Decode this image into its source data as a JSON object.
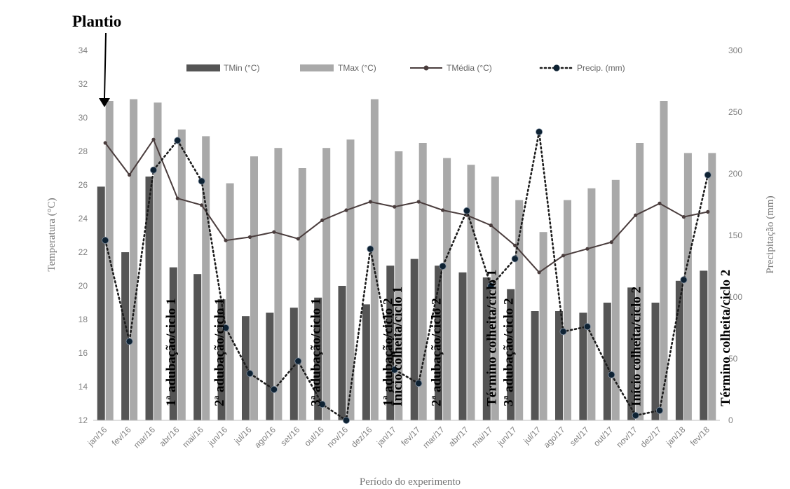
{
  "chart_data": {
    "type": "bar",
    "xlabel": "Período do experimento",
    "ylabel": "Temperatura (°C)",
    "y2label": "Precipitação (mm)",
    "ylim": [
      12,
      34
    ],
    "y_ticks": [
      12,
      14,
      16,
      18,
      20,
      22,
      24,
      26,
      28,
      30,
      32,
      34
    ],
    "y2lim": [
      0,
      300
    ],
    "y2_ticks": [
      0,
      50,
      100,
      150,
      200,
      250,
      300
    ],
    "grid": false,
    "legend_position": "top",
    "categories": [
      "jan/16",
      "fev/16",
      "mar/16",
      "abr/16",
      "mai/16",
      "jun/16",
      "jul/16",
      "ago/16",
      "set/16",
      "out/16",
      "nov/16",
      "dez/16",
      "jan/17",
      "fev/17",
      "mar/17",
      "abr/17",
      "mai/17",
      "jun/17",
      "jul/17",
      "ago/17",
      "set/17",
      "out/17",
      "nov/17",
      "dez/17",
      "jan/18",
      "fev/18"
    ],
    "series": [
      {
        "name": "TMin (°C)",
        "type": "bar",
        "axis": "left",
        "color": "#555555",
        "values": [
          25.9,
          22.0,
          26.5,
          21.1,
          20.7,
          19.2,
          18.2,
          18.4,
          18.7,
          19.3,
          20.0,
          18.9,
          21.2,
          21.6,
          21.2,
          20.8,
          20.5,
          19.8,
          18.5,
          18.5,
          18.4,
          19.0,
          19.9,
          19.0,
          20.3,
          20.9
        ]
      },
      {
        "name": "TMax (°C)",
        "type": "bar",
        "axis": "left",
        "color": "#a9a9a9",
        "values": [
          31.0,
          31.1,
          30.9,
          29.3,
          28.9,
          26.1,
          27.7,
          28.2,
          27.0,
          28.2,
          28.7,
          31.1,
          28.0,
          28.5,
          27.6,
          27.2,
          26.5,
          25.1,
          23.2,
          25.1,
          25.8,
          26.3,
          28.5,
          31.0,
          27.9,
          27.9
        ]
      },
      {
        "name": "TMédia (°C)",
        "type": "line",
        "axis": "left",
        "color": "#4a3d3d",
        "values": [
          28.5,
          26.6,
          28.7,
          25.2,
          24.8,
          22.7,
          22.9,
          23.2,
          22.8,
          23.9,
          24.5,
          25.0,
          24.7,
          25.0,
          24.5,
          24.2,
          23.6,
          22.4,
          20.8,
          21.8,
          22.2,
          22.6,
          24.2,
          24.9,
          24.1,
          24.4
        ]
      },
      {
        "name": "Precip. (mm)",
        "type": "line",
        "axis": "right",
        "color": "#1c1c1c",
        "values": [
          146,
          64,
          203,
          227,
          194,
          75,
          38,
          25,
          48,
          13,
          0,
          139,
          41,
          30,
          125,
          170,
          109,
          131,
          234,
          72,
          76,
          37,
          4,
          8,
          114,
          199
        ]
      }
    ],
    "annotations": [
      {
        "text": "Plantio",
        "index": 0
      },
      {
        "text": "1ª adubação/ciclo 1",
        "index": 2.7
      },
      {
        "text": "2ª adubação/ciclo 1",
        "index": 4.7
      },
      {
        "text": "3ª adubação/ciclo 1",
        "index": 8.7
      },
      {
        "text": "1ª adubação/ciclo 2",
        "index": 11.7
      },
      {
        "text": "Início colheita/ciclo 1",
        "index": 12.1
      },
      {
        "text": "2ª adubação/ciclo 2",
        "index": 13.7
      },
      {
        "text": "Término colheita/ciclo 1",
        "index": 16.0
      },
      {
        "text": "3ª adubação/ciclo 2",
        "index": 16.7
      },
      {
        "text": "Início colheita/ciclo 2",
        "index": 22.0
      },
      {
        "text": "Término colheita/ciclo 2",
        "index": 25.7
      }
    ]
  }
}
